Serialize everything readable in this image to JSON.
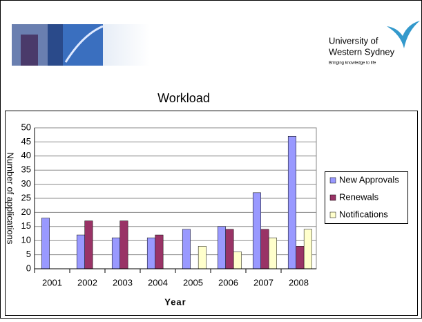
{
  "header": {
    "logo_lines": [
      "University of",
      "Western Sydney"
    ],
    "tagline": "Bringing knowledge to life",
    "slide_title": "Workload"
  },
  "chart_data": {
    "type": "bar",
    "y_label": "Number of applications",
    "x_label": "Year",
    "categories": [
      "2001",
      "2002",
      "2003",
      "2004",
      "2005",
      "2006",
      "2007",
      "2008"
    ],
    "series": [
      {
        "name": "New Approvals",
        "color": "#9999ff",
        "values": [
          18,
          12,
          11,
          11,
          14,
          15,
          27,
          47
        ]
      },
      {
        "name": "Renewals",
        "color": "#993366",
        "values": [
          0,
          17,
          17,
          12,
          0,
          14,
          14,
          8
        ]
      },
      {
        "name": "Notifications",
        "color": "#ffffcc",
        "values": [
          0,
          0,
          0,
          0,
          8,
          6,
          11,
          14
        ]
      }
    ],
    "ylim": [
      0,
      50
    ],
    "yticks": [
      0,
      5,
      10,
      15,
      20,
      25,
      30,
      35,
      40,
      45,
      50
    ],
    "grid": true,
    "legend": "right"
  }
}
